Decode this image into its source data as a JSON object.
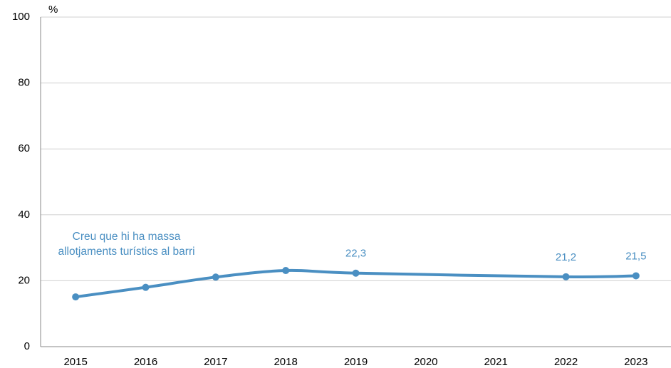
{
  "chart_data": {
    "type": "line",
    "y_label": "%",
    "x": [
      2015,
      2016,
      2017,
      2018,
      2019,
      2022,
      2023
    ],
    "xlim": [
      2014.5,
      2023.5
    ],
    "xticks": [
      2015,
      2016,
      2017,
      2018,
      2019,
      2020,
      2021,
      2022,
      2023
    ],
    "ylim": [
      0,
      100
    ],
    "yticks": [
      0,
      20,
      40,
      60,
      80,
      100
    ],
    "grid": true,
    "series": [
      {
        "name": "Creu que hi ha massa allotjaments turístics al barri",
        "color": "#4a8fc2",
        "values": [
          15.1,
          18.0,
          21.1,
          23.1,
          22.3,
          21.2,
          21.5
        ],
        "value_labels": [
          null,
          null,
          null,
          null,
          "22,3",
          "21,2",
          "21,5"
        ]
      }
    ]
  }
}
